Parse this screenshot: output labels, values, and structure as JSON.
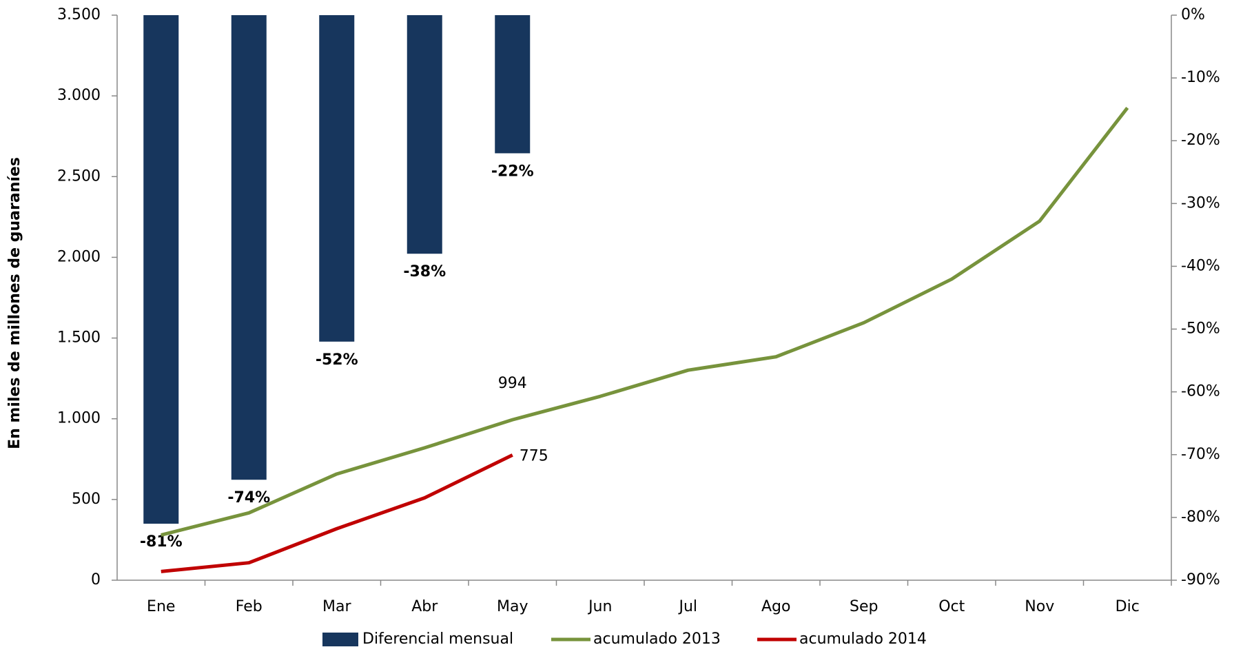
{
  "chart_data": {
    "type": "bar_line",
    "ylabel": "En miles de millones de guaraníes",
    "categories": [
      "Ene",
      "Feb",
      "Mar",
      "Abr",
      "May",
      "Jun",
      "Jul",
      "Ago",
      "Sep",
      "Oct",
      "Nov",
      "Dic"
    ],
    "ylim": [
      0,
      3500
    ],
    "yticks": [
      0,
      500,
      {
        "value": 1000,
        "label": "1.000"
      },
      {
        "value": 1500,
        "label": "1.500"
      },
      {
        "value": 2000,
        "label": "2.000"
      },
      {
        "value": 2500,
        "label": "2.500"
      },
      {
        "value": 3000,
        "label": "3.000"
      },
      {
        "value": 3500,
        "label": "3.500"
      }
    ],
    "y2lim": [
      -90,
      0
    ],
    "y2ticks": [
      {
        "value": -90,
        "label": "-90%"
      },
      {
        "value": -80,
        "label": "-80%"
      },
      {
        "value": -70,
        "label": "-70%"
      },
      {
        "value": -60,
        "label": "-60%"
      },
      {
        "value": -50,
        "label": "-50%"
      },
      {
        "value": -40,
        "label": "-40%"
      },
      {
        "value": -30,
        "label": "-30%"
      },
      {
        "value": -20,
        "label": "-20%"
      },
      {
        "value": -10,
        "label": "-10%"
      },
      {
        "value": 0,
        "label": "0%"
      }
    ],
    "series": [
      {
        "name": "Diferencial mensual",
        "type": "bar",
        "axis": "y2",
        "color": "#17365d",
        "values": [
          -81,
          -74,
          -52,
          -38,
          -22,
          null,
          null,
          null,
          null,
          null,
          null,
          null
        ],
        "value_labels": [
          "-81%",
          "-74%",
          "-52%",
          "-38%",
          "-22%",
          null,
          null,
          null,
          null,
          null,
          null,
          null
        ]
      },
      {
        "name": "acumulado 2013",
        "type": "line",
        "color": "#77933c",
        "values": [
          280,
          417,
          658,
          820,
          994,
          1139,
          1301,
          1384,
          1595,
          1865,
          2224,
          2926
        ],
        "value_labels": [
          null,
          null,
          null,
          null,
          "994",
          null,
          null,
          null,
          null,
          null,
          null,
          null
        ]
      },
      {
        "name": "acumulado 2014",
        "type": "line",
        "color": "#c00000",
        "values": [
          54,
          108,
          319,
          510,
          775,
          null,
          null,
          null,
          null,
          null,
          null,
          null
        ],
        "value_labels": [
          null,
          null,
          null,
          null,
          "775",
          null,
          null,
          null,
          null,
          null,
          null,
          null
        ]
      }
    ]
  }
}
